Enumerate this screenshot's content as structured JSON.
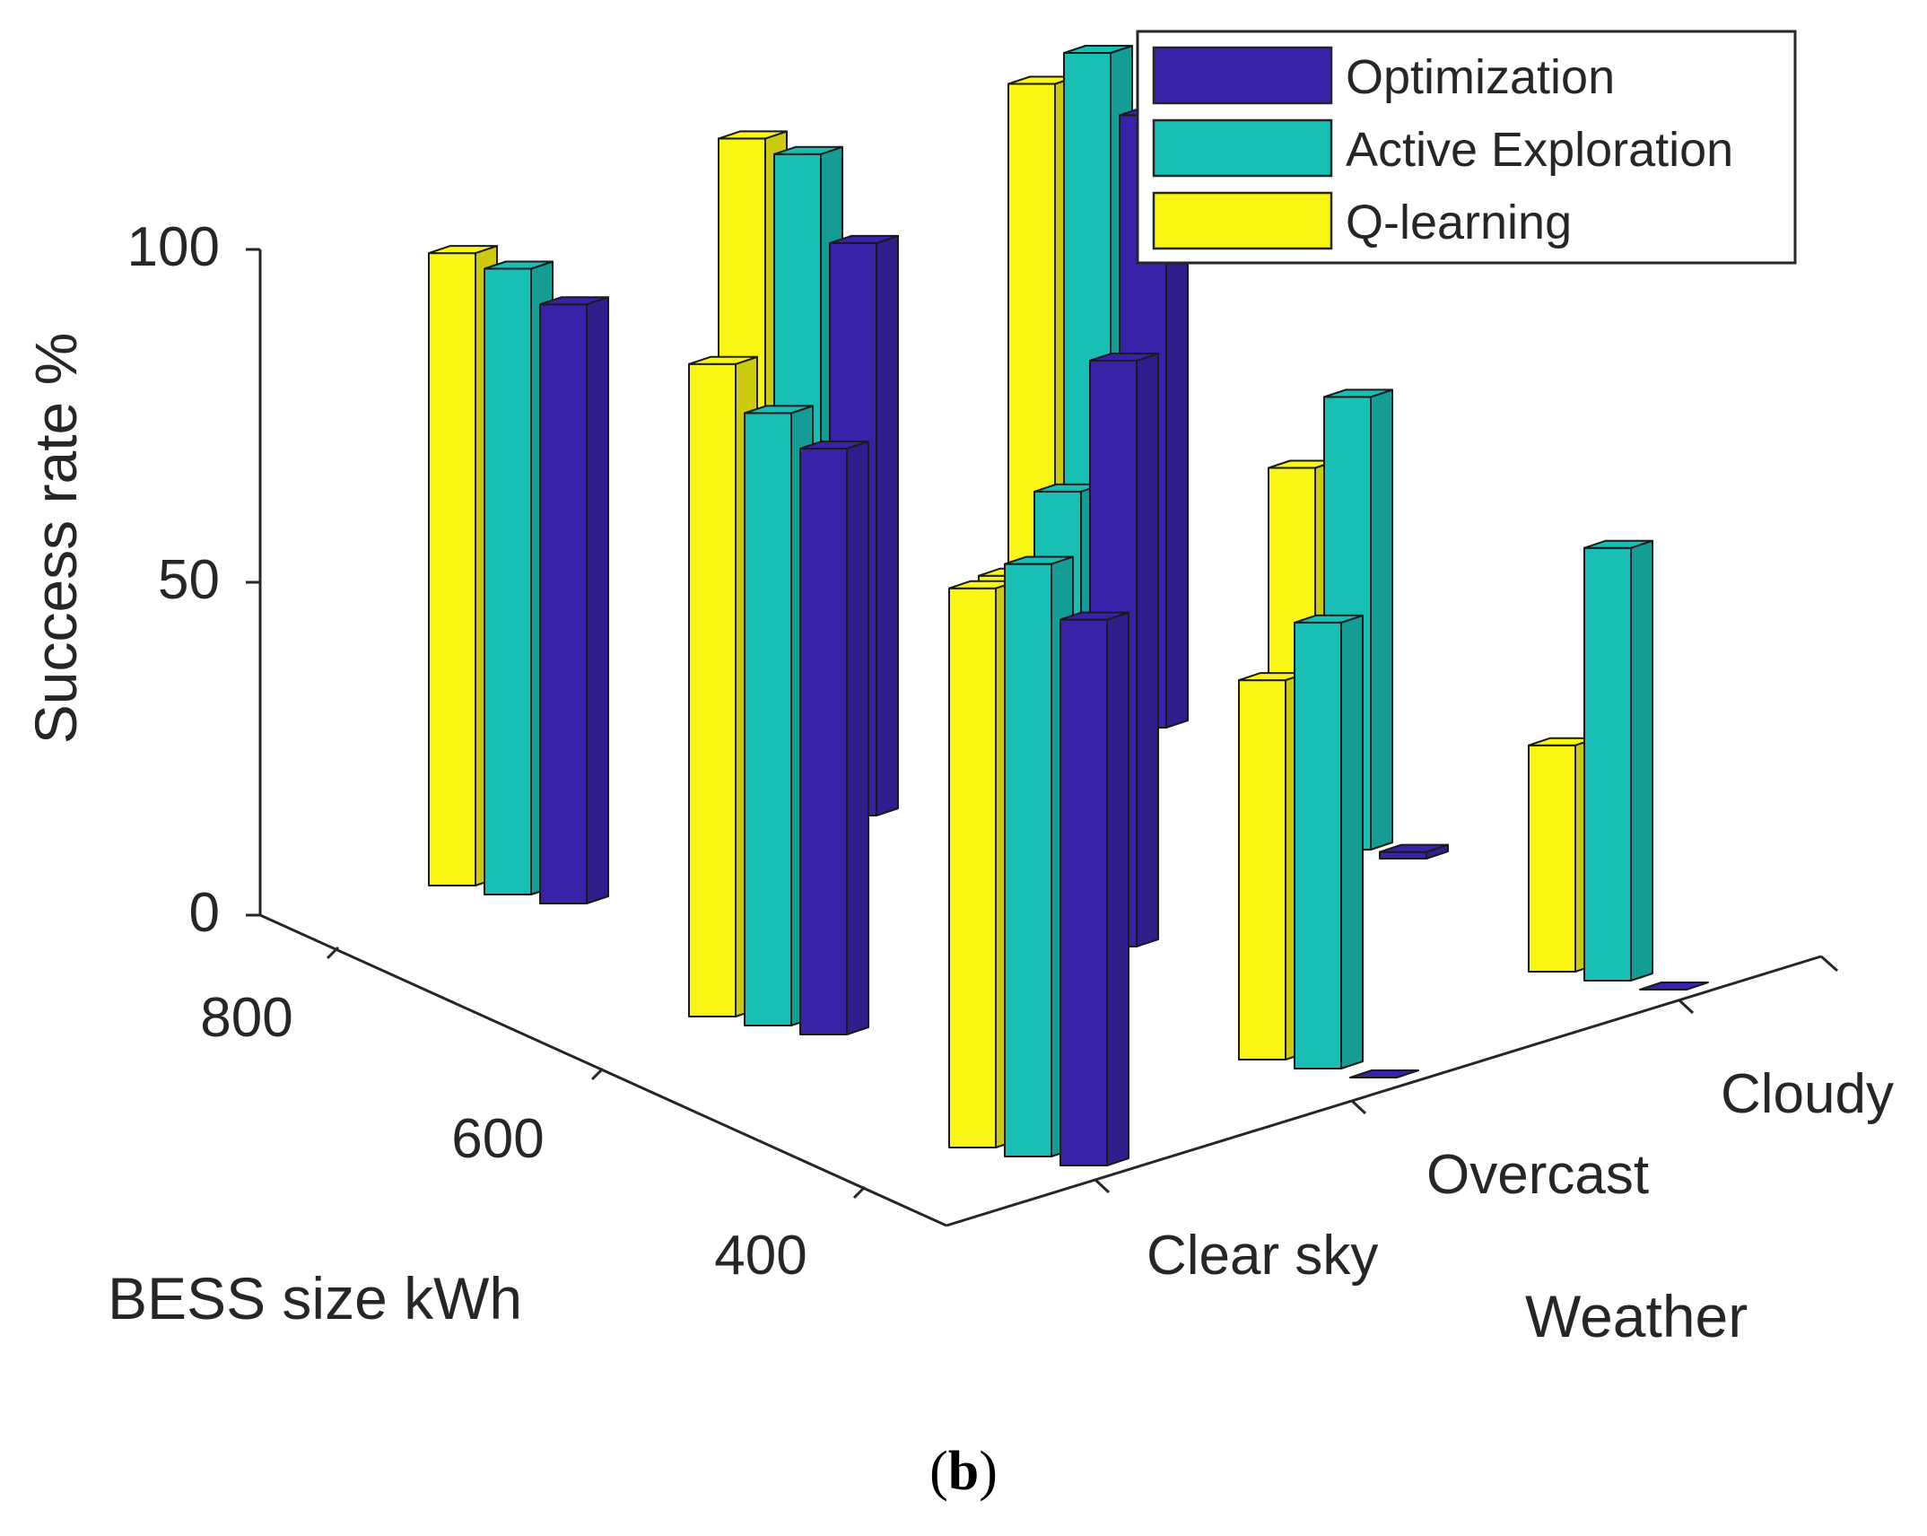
{
  "chart_data": {
    "type": "bar3d",
    "ylabel": "Success rate %",
    "xlabel": "Weather",
    "depth_label": "BESS size kWh",
    "zlim": [
      0,
      100
    ],
    "z_ticks": [
      "0",
      "50",
      "100"
    ],
    "weather_categories": [
      "Clear sky",
      "Overcast",
      "Cloudy"
    ],
    "bess_categories": [
      "400",
      "600",
      "800"
    ],
    "series": [
      {
        "name": "Optimization",
        "color": "#3a22a8",
        "values": {
          "800": [
            90,
            86,
            92
          ],
          "600": [
            88,
            88,
            1
          ],
          "400": [
            82,
            0,
            0
          ]
        }
      },
      {
        "name": "Active Exploration",
        "color": "#17bfb4",
        "values": {
          "800": [
            94,
            98,
            100
          ],
          "600": [
            92,
            67,
            68
          ],
          "400": [
            89,
            67,
            65
          ]
        }
      },
      {
        "name": "Q-learning",
        "color": "#f8f612",
        "values": {
          "800": [
            95,
            99,
            94
          ],
          "600": [
            98,
            53,
            56
          ],
          "400": [
            84,
            57,
            34
          ]
        }
      }
    ],
    "caption_open": "(",
    "caption_letter": "b",
    "caption_close": ")"
  }
}
